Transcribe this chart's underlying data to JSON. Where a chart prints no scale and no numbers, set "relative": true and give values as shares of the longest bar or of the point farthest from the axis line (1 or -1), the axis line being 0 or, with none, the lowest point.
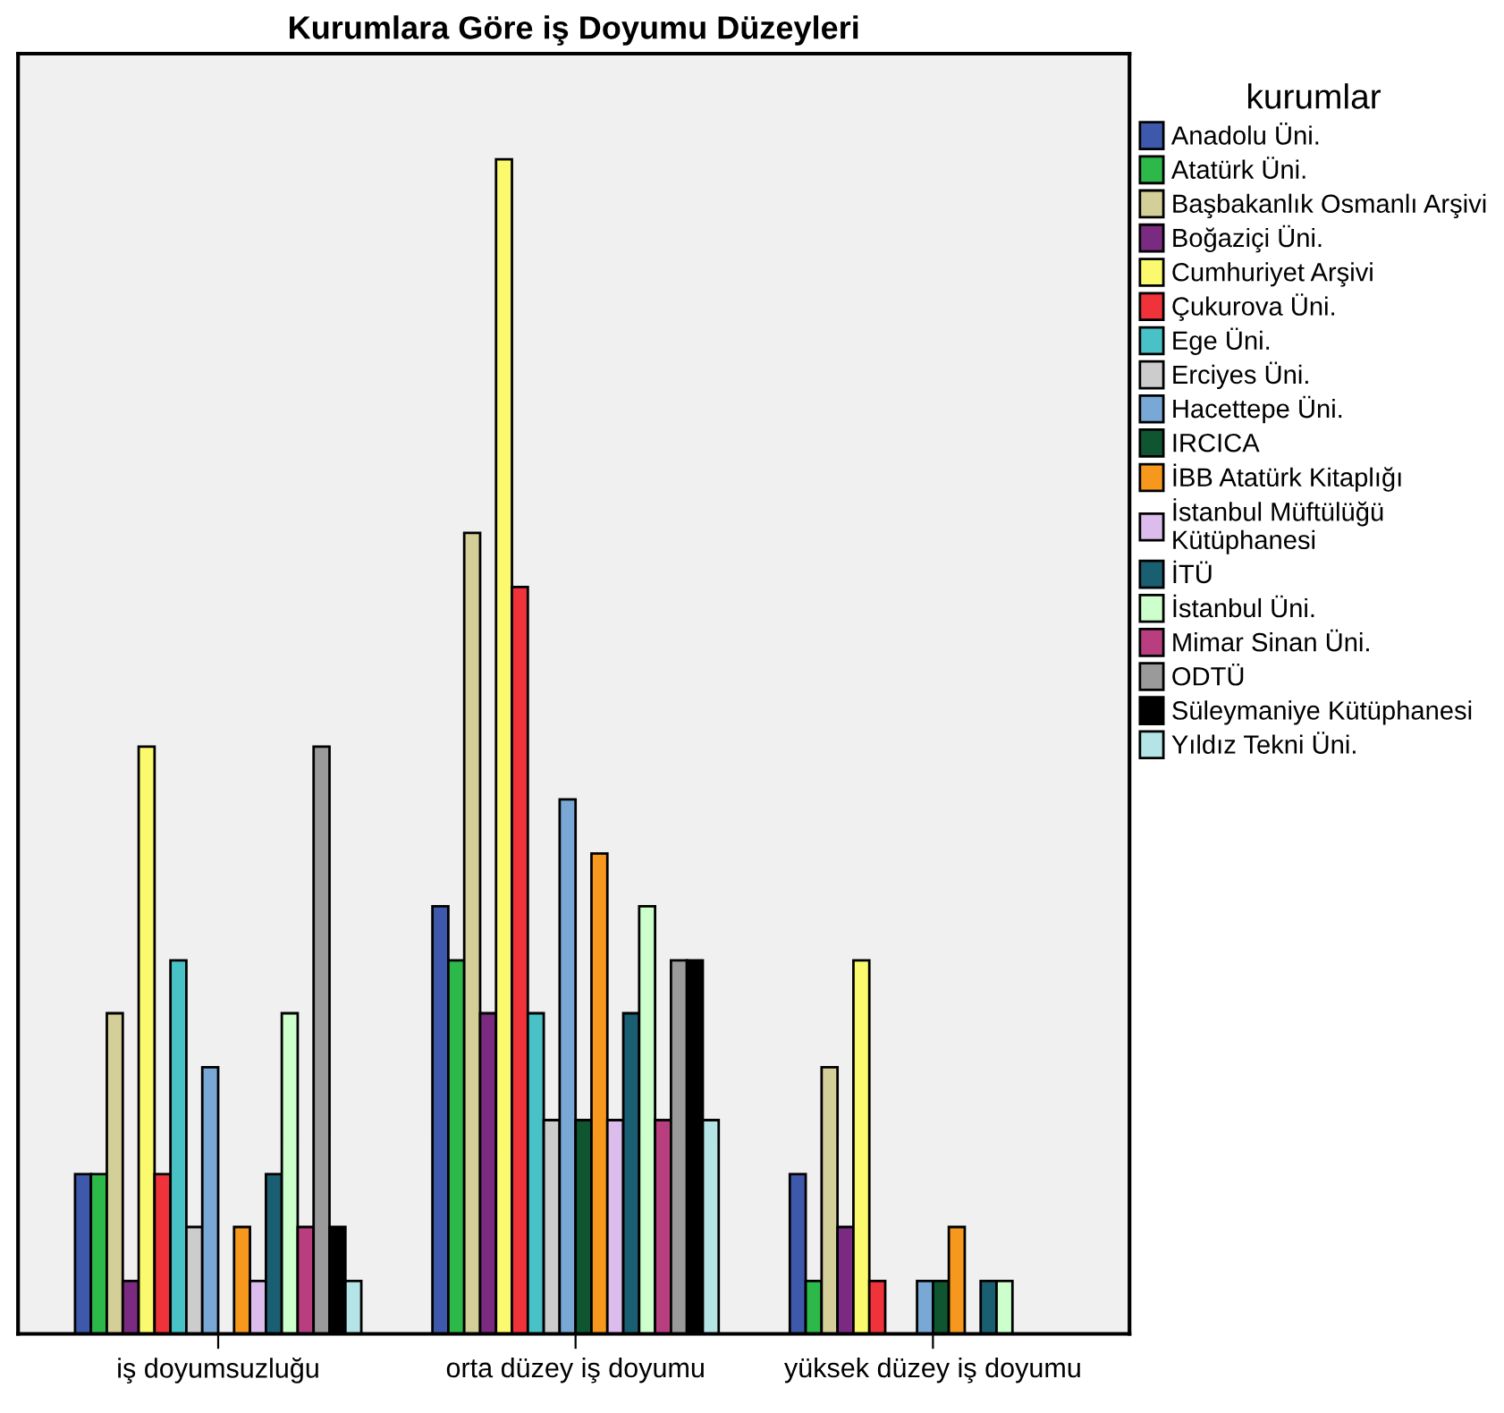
{
  "chart_data": {
    "type": "bar",
    "title": "Kurumlara Göre iş Doyumu Düzeyleri",
    "relative": true,
    "legend": "right",
    "legend_title": "kurumlar",
    "grid": false,
    "categories": [
      "iş doyumsuzluğu",
      "orta düzey iş doyumu",
      "yüksek düzey iş doyumu"
    ],
    "series": [
      {
        "name": "Anadolu Üni.",
        "color": "#3e58ac",
        "values": [
          0.136,
          0.364,
          0.136
        ]
      },
      {
        "name": "Atatürk Üni.",
        "color": "#2db84a",
        "values": [
          0.136,
          0.318,
          0.045
        ]
      },
      {
        "name": "Başbakanlık Osmanlı Arşivi",
        "color": "#d4cf98",
        "values": [
          0.273,
          0.682,
          0.227
        ]
      },
      {
        "name": "Boğaziçi Üni.",
        "color": "#7a2a80",
        "values": [
          0.045,
          0.273,
          0.091
        ]
      },
      {
        "name": "Cumhuriyet Arşivi",
        "color": "#fbf96e",
        "values": [
          0.5,
          1,
          0.318
        ]
      },
      {
        "name": "Çukurova Üni.",
        "color": "#f0323a",
        "values": [
          0.136,
          0.636,
          0.045
        ]
      },
      {
        "name": "Ege Üni.",
        "color": "#48c2c6",
        "values": [
          0.318,
          0.273,
          null
        ]
      },
      {
        "name": "Erciyes Üni.",
        "color": "#cccccc",
        "values": [
          0.091,
          0.182,
          null
        ]
      },
      {
        "name": "Hacettepe Üni.",
        "color": "#7aa8d6",
        "values": [
          0.227,
          0.455,
          0.045
        ]
      },
      {
        "name": "IRCICA",
        "color": "#0e5530",
        "values": [
          null,
          0.182,
          0.045
        ]
      },
      {
        "name": "İBB Atatürk Kitaplığı",
        "color": "#f7981e",
        "values": [
          0.091,
          0.409,
          0.091
        ]
      },
      {
        "name": "İstanbul Müftülüğü\nKütüphanesi",
        "color": "#dcbcec",
        "values": [
          0.045,
          0.182,
          null
        ]
      },
      {
        "name": "İTÜ",
        "color": "#1a5e72",
        "values": [
          0.136,
          0.273,
          0.045
        ]
      },
      {
        "name": "İstanbul Üni.",
        "color": "#ccffcc",
        "values": [
          0.273,
          0.364,
          0.045
        ]
      },
      {
        "name": "Mimar Sinan Üni.",
        "color": "#b83e80",
        "values": [
          0.091,
          0.182,
          null
        ]
      },
      {
        "name": "ODTÜ",
        "color": "#9a9a9a",
        "values": [
          0.5,
          0.318,
          null
        ]
      },
      {
        "name": "Süleymaniye Kütüphanesi",
        "color": "#000000",
        "values": [
          0.091,
          0.318,
          null
        ]
      },
      {
        "name": "Yıldız Tekni Üni.",
        "color": "#b4e4e6",
        "values": [
          0.045,
          0.182,
          null
        ]
      }
    ]
  }
}
